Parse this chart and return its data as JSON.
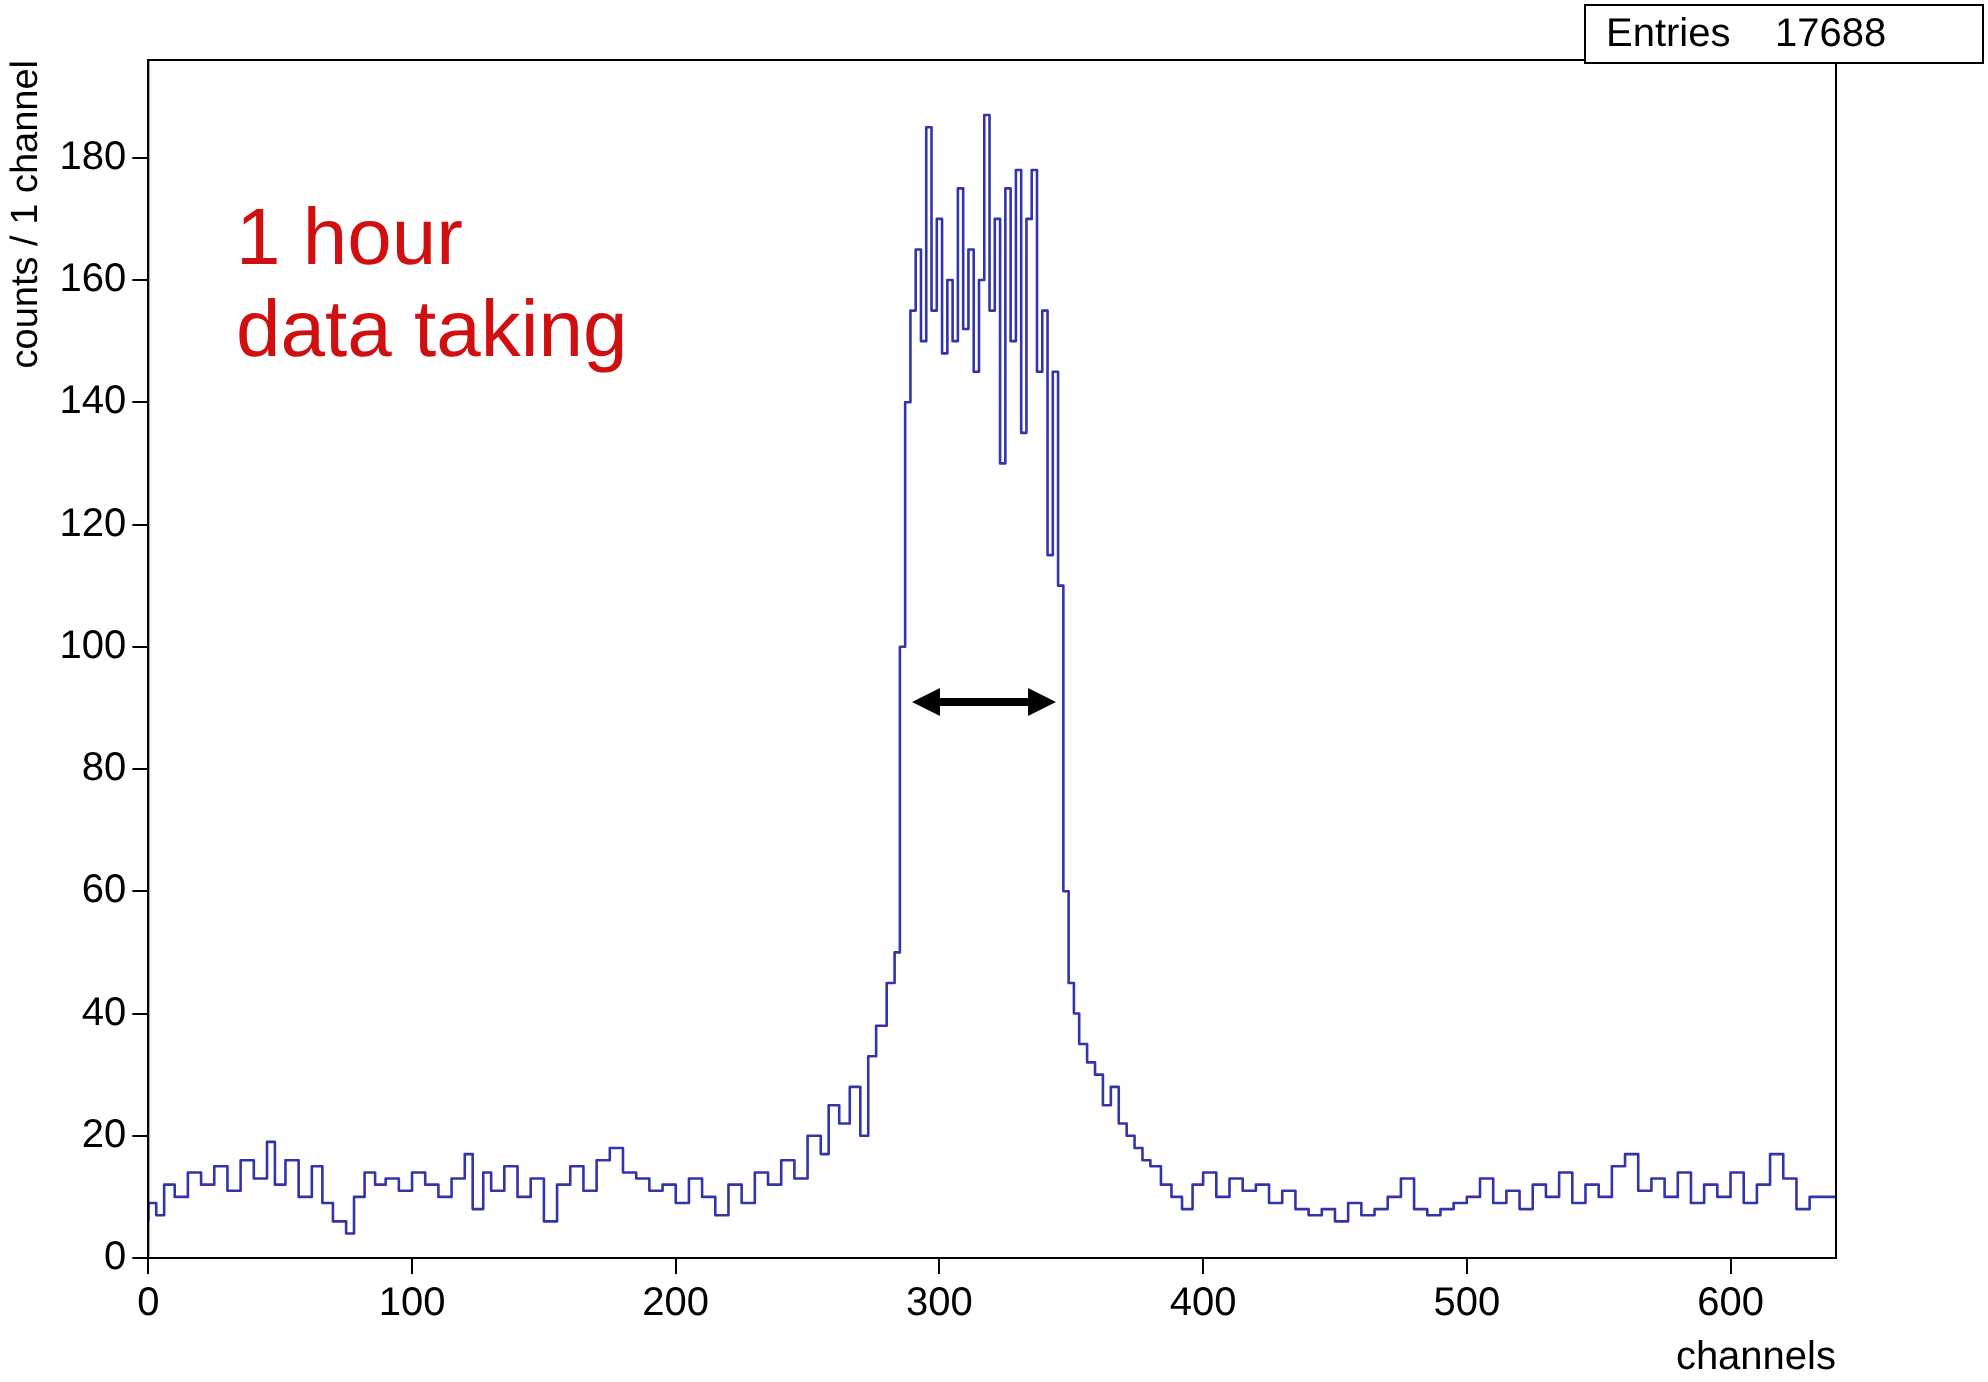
{
  "chart_data": {
    "type": "step",
    "xlabel": "channels",
    "ylabel": "counts / 1 channel",
    "annotations": [
      "1 hour\ndata taking",
      "Entries    17688"
    ],
    "x": [
      0,
      3,
      6,
      10,
      15,
      20,
      25,
      30,
      35,
      40,
      45,
      48,
      52,
      57,
      62,
      66,
      70,
      75,
      78,
      82,
      86,
      90,
      95,
      100,
      105,
      110,
      115,
      120,
      123,
      127,
      130,
      135,
      140,
      145,
      150,
      155,
      160,
      165,
      170,
      175,
      180,
      185,
      190,
      195,
      200,
      205,
      210,
      215,
      220,
      225,
      230,
      235,
      240,
      245,
      250,
      255,
      258,
      262,
      266,
      270,
      273,
      276,
      280,
      283,
      285,
      287,
      289,
      291,
      293,
      295,
      297,
      299,
      301,
      303,
      305,
      307,
      309,
      311,
      313,
      315,
      317,
      319,
      321,
      323,
      325,
      327,
      329,
      331,
      333,
      335,
      337,
      339,
      341,
      343,
      345,
      347,
      349,
      351,
      353,
      356,
      359,
      362,
      365,
      368,
      371,
      374,
      377,
      380,
      384,
      388,
      392,
      396,
      400,
      405,
      410,
      415,
      420,
      425,
      430,
      435,
      440,
      445,
      450,
      455,
      460,
      465,
      470,
      475,
      480,
      485,
      490,
      495,
      500,
      505,
      510,
      515,
      520,
      525,
      530,
      535,
      540,
      545,
      550,
      555,
      560,
      565,
      570,
      575,
      580,
      585,
      590,
      595,
      600,
      605,
      610,
      615,
      620,
      625,
      630,
      635,
      640
    ],
    "series": [
      {
        "color": "#3333aa",
        "values": [
          6,
          9,
          7,
          12,
          10,
          14,
          12,
          15,
          11,
          16,
          13,
          19,
          12,
          16,
          10,
          15,
          9,
          6,
          4,
          10,
          14,
          12,
          13,
          11,
          14,
          12,
          10,
          13,
          17,
          8,
          14,
          11,
          15,
          10,
          13,
          6,
          12,
          15,
          11,
          16,
          18,
          14,
          13,
          11,
          12,
          9,
          13,
          10,
          7,
          12,
          9,
          14,
          12,
          16,
          13,
          20,
          17,
          25,
          22,
          28,
          20,
          33,
          38,
          45,
          50,
          100,
          140,
          155,
          165,
          150,
          185,
          155,
          170,
          148,
          160,
          150,
          175,
          152,
          165,
          145,
          160,
          187,
          155,
          170,
          130,
          175,
          150,
          178,
          135,
          170,
          178,
          145,
          155,
          115,
          145,
          110,
          60,
          45,
          40,
          35,
          32,
          30,
          25,
          28,
          22,
          20,
          18,
          16,
          15,
          12,
          10,
          8,
          12,
          14,
          10,
          13,
          11,
          12,
          9,
          11,
          8,
          7,
          8,
          6,
          9,
          7,
          8,
          10,
          13,
          8,
          7,
          8,
          9,
          10,
          13,
          9,
          11,
          8,
          12,
          10,
          14,
          9,
          12,
          10,
          15,
          17,
          11,
          13,
          10,
          14,
          9,
          12,
          10,
          14,
          9,
          12,
          17,
          13,
          8,
          10,
          10
        ]
      }
    ],
    "xlim": [
      0,
      640
    ],
    "xticks": [
      0,
      100,
      200,
      300,
      400,
      500,
      600
    ],
    "ylim": [
      0,
      196
    ],
    "yticks": [
      0,
      20,
      40,
      60,
      80,
      100,
      120,
      140,
      160,
      180
    ],
    "grid": false,
    "legend": false,
    "line_style": "solid",
    "marker": "none"
  }
}
